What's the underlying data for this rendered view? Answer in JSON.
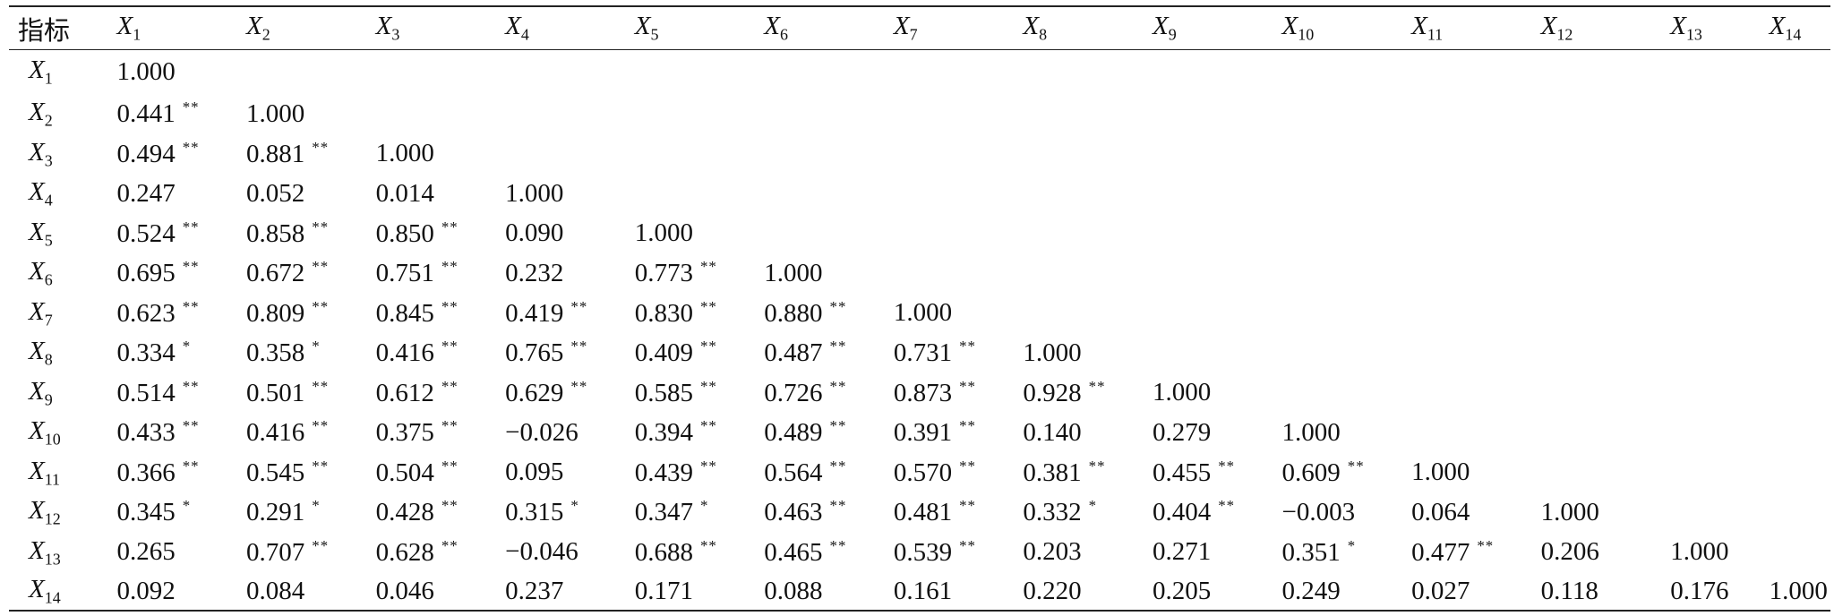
{
  "table": {
    "corner_label": "指标",
    "variable_prefix": "X",
    "columns": [
      {
        "sub": "1"
      },
      {
        "sub": "2"
      },
      {
        "sub": "3"
      },
      {
        "sub": "4"
      },
      {
        "sub": "5"
      },
      {
        "sub": "6"
      },
      {
        "sub": "7"
      },
      {
        "sub": "8"
      },
      {
        "sub": "9"
      },
      {
        "sub": "10"
      },
      {
        "sub": "11"
      },
      {
        "sub": "12"
      },
      {
        "sub": "13"
      },
      {
        "sub": "14"
      }
    ],
    "rows": [
      {
        "sub": "1",
        "cells": [
          {
            "v": "1.000",
            "s": ""
          }
        ]
      },
      {
        "sub": "2",
        "cells": [
          {
            "v": "0.441",
            "s": "**"
          },
          {
            "v": "1.000",
            "s": ""
          }
        ]
      },
      {
        "sub": "3",
        "cells": [
          {
            "v": "0.494",
            "s": "**"
          },
          {
            "v": "0.881",
            "s": "**"
          },
          {
            "v": "1.000",
            "s": ""
          }
        ]
      },
      {
        "sub": "4",
        "cells": [
          {
            "v": "0.247",
            "s": ""
          },
          {
            "v": "0.052",
            "s": ""
          },
          {
            "v": "0.014",
            "s": ""
          },
          {
            "v": "1.000",
            "s": ""
          }
        ]
      },
      {
        "sub": "5",
        "cells": [
          {
            "v": "0.524",
            "s": "**"
          },
          {
            "v": "0.858",
            "s": "**"
          },
          {
            "v": "0.850",
            "s": "**"
          },
          {
            "v": "0.090",
            "s": ""
          },
          {
            "v": "1.000",
            "s": ""
          }
        ]
      },
      {
        "sub": "6",
        "cells": [
          {
            "v": "0.695",
            "s": "**"
          },
          {
            "v": "0.672",
            "s": "**"
          },
          {
            "v": "0.751",
            "s": "**"
          },
          {
            "v": "0.232",
            "s": ""
          },
          {
            "v": "0.773",
            "s": "**"
          },
          {
            "v": "1.000",
            "s": ""
          }
        ]
      },
      {
        "sub": "7",
        "cells": [
          {
            "v": "0.623",
            "s": "**"
          },
          {
            "v": "0.809",
            "s": "**"
          },
          {
            "v": "0.845",
            "s": "**"
          },
          {
            "v": "0.419",
            "s": "**"
          },
          {
            "v": "0.830",
            "s": "**"
          },
          {
            "v": "0.880",
            "s": "**"
          },
          {
            "v": "1.000",
            "s": ""
          }
        ]
      },
      {
        "sub": "8",
        "cells": [
          {
            "v": "0.334",
            "s": "*"
          },
          {
            "v": "0.358",
            "s": "*"
          },
          {
            "v": "0.416",
            "s": "**"
          },
          {
            "v": "0.765",
            "s": "**"
          },
          {
            "v": "0.409",
            "s": "**"
          },
          {
            "v": "0.487",
            "s": "**"
          },
          {
            "v": "0.731",
            "s": "**"
          },
          {
            "v": "1.000",
            "s": ""
          }
        ]
      },
      {
        "sub": "9",
        "cells": [
          {
            "v": "0.514",
            "s": "**"
          },
          {
            "v": "0.501",
            "s": "**"
          },
          {
            "v": "0.612",
            "s": "**"
          },
          {
            "v": "0.629",
            "s": "**"
          },
          {
            "v": "0.585",
            "s": "**"
          },
          {
            "v": "0.726",
            "s": "**"
          },
          {
            "v": "0.873",
            "s": "**"
          },
          {
            "v": "0.928",
            "s": "**"
          },
          {
            "v": "1.000",
            "s": ""
          }
        ]
      },
      {
        "sub": "10",
        "cells": [
          {
            "v": "0.433",
            "s": "**"
          },
          {
            "v": "0.416",
            "s": "**"
          },
          {
            "v": "0.375",
            "s": "**"
          },
          {
            "v": "−0.026",
            "s": ""
          },
          {
            "v": "0.394",
            "s": "**"
          },
          {
            "v": "0.489",
            "s": "**"
          },
          {
            "v": "0.391",
            "s": "**"
          },
          {
            "v": "0.140",
            "s": ""
          },
          {
            "v": "0.279",
            "s": ""
          },
          {
            "v": "1.000",
            "s": ""
          }
        ]
      },
      {
        "sub": "11",
        "cells": [
          {
            "v": "0.366",
            "s": "**"
          },
          {
            "v": "0.545",
            "s": "**"
          },
          {
            "v": "0.504",
            "s": "**"
          },
          {
            "v": "0.095",
            "s": ""
          },
          {
            "v": "0.439",
            "s": "**"
          },
          {
            "v": "0.564",
            "s": "**"
          },
          {
            "v": "0.570",
            "s": "**"
          },
          {
            "v": "0.381",
            "s": "**"
          },
          {
            "v": "0.455",
            "s": "**"
          },
          {
            "v": "0.609",
            "s": "**"
          },
          {
            "v": "1.000",
            "s": ""
          }
        ]
      },
      {
        "sub": "12",
        "cells": [
          {
            "v": "0.345",
            "s": "*"
          },
          {
            "v": "0.291",
            "s": "*"
          },
          {
            "v": "0.428",
            "s": "**"
          },
          {
            "v": "0.315",
            "s": "*"
          },
          {
            "v": "0.347",
            "s": "*"
          },
          {
            "v": "0.463",
            "s": "**"
          },
          {
            "v": "0.481",
            "s": "**"
          },
          {
            "v": "0.332",
            "s": "*"
          },
          {
            "v": "0.404",
            "s": "**"
          },
          {
            "v": "−0.003",
            "s": ""
          },
          {
            "v": "0.064",
            "s": ""
          },
          {
            "v": "1.000",
            "s": ""
          }
        ]
      },
      {
        "sub": "13",
        "cells": [
          {
            "v": "0.265",
            "s": ""
          },
          {
            "v": "0.707",
            "s": "**"
          },
          {
            "v": "0.628",
            "s": "**"
          },
          {
            "v": "−0.046",
            "s": ""
          },
          {
            "v": "0.688",
            "s": "**"
          },
          {
            "v": "0.465",
            "s": "**"
          },
          {
            "v": "0.539",
            "s": "**"
          },
          {
            "v": "0.203",
            "s": ""
          },
          {
            "v": "0.271",
            "s": ""
          },
          {
            "v": "0.351",
            "s": "*"
          },
          {
            "v": "0.477",
            "s": "**"
          },
          {
            "v": "0.206",
            "s": ""
          },
          {
            "v": "1.000",
            "s": ""
          }
        ]
      },
      {
        "sub": "14",
        "cells": [
          {
            "v": "0.092",
            "s": ""
          },
          {
            "v": "0.084",
            "s": ""
          },
          {
            "v": "0.046",
            "s": ""
          },
          {
            "v": "0.237",
            "s": ""
          },
          {
            "v": "0.171",
            "s": ""
          },
          {
            "v": "0.088",
            "s": ""
          },
          {
            "v": "0.161",
            "s": ""
          },
          {
            "v": "0.220",
            "s": ""
          },
          {
            "v": "0.205",
            "s": ""
          },
          {
            "v": "0.249",
            "s": ""
          },
          {
            "v": "0.027",
            "s": ""
          },
          {
            "v": "0.118",
            "s": ""
          },
          {
            "v": "0.176",
            "s": ""
          },
          {
            "v": "1.000",
            "s": ""
          }
        ]
      }
    ]
  }
}
